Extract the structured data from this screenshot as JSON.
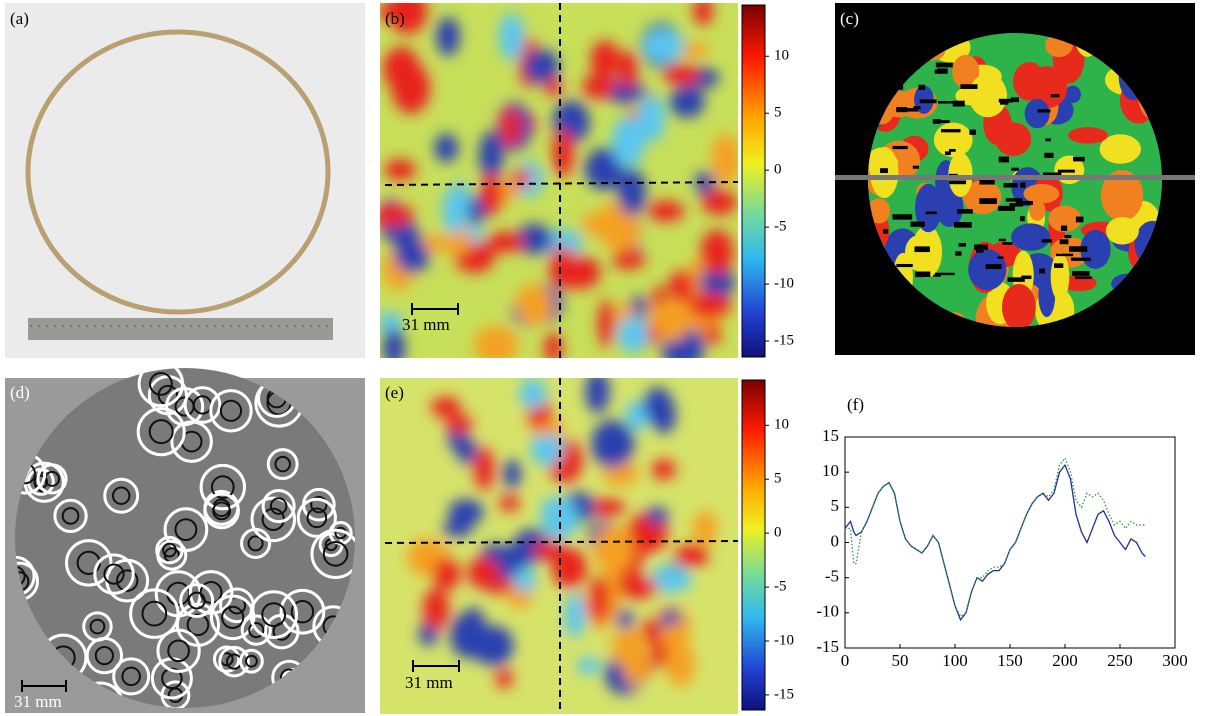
{
  "panels": {
    "a": {
      "label": "(a)"
    },
    "b": {
      "label": "(b)",
      "scale_bar": "31 mm",
      "colorbar": {
        "ylim": [
          -16.4,
          14.5
        ],
        "ticks": [
          10,
          5,
          0,
          -5,
          -10,
          -15
        ]
      }
    },
    "c": {
      "label": "(c)"
    },
    "d": {
      "label": "(d)",
      "scale_bar": "31 mm"
    },
    "e": {
      "label": "(e)",
      "scale_bar": "31 mm",
      "colorbar": {
        "ylim": [
          -16.4,
          14.2
        ],
        "ticks": [
          10,
          5,
          0,
          -5,
          -10,
          -15
        ]
      }
    },
    "f": {
      "label": "(f)"
    }
  },
  "chart_data": {
    "type": "line",
    "x": [
      0,
      5,
      8,
      10,
      15,
      20,
      25,
      30,
      35,
      40,
      45,
      50,
      55,
      60,
      65,
      70,
      75,
      80,
      85,
      90,
      95,
      100,
      105,
      110,
      115,
      120,
      125,
      130,
      135,
      140,
      145,
      150,
      155,
      160,
      165,
      170,
      175,
      180,
      185,
      190,
      195,
      200,
      205,
      210,
      215,
      220,
      225,
      230,
      235,
      240,
      245,
      250,
      255,
      260,
      265,
      270,
      273
    ],
    "series": [
      {
        "color": "#1f2fa0",
        "style": "solid",
        "values": [
          2,
          3,
          1.5,
          1,
          1.5,
          3,
          5,
          7,
          8,
          8.5,
          7,
          3,
          0.5,
          -0.5,
          -1,
          -1.5,
          -0.5,
          1,
          0,
          -3,
          -6,
          -9,
          -11,
          -10,
          -7,
          -5,
          -5.5,
          -4.5,
          -4,
          -4,
          -3,
          -1,
          0,
          2,
          4,
          5.5,
          6.5,
          7,
          6,
          7,
          10,
          11,
          9,
          4,
          1.5,
          0,
          2,
          4,
          4.5,
          3,
          1,
          0,
          -1,
          0.5,
          0,
          -1.5,
          -2
        ]
      },
      {
        "color": "#2a9a3a",
        "style": "dotted",
        "values": [
          2,
          2,
          -3,
          -3,
          1.5,
          3,
          5,
          7,
          8,
          8.5,
          7,
          3,
          0.5,
          -0.5,
          -1,
          -1.5,
          -0.5,
          1,
          0,
          -3,
          -6,
          -9,
          -10.5,
          -10,
          -7,
          -5,
          -5,
          -4,
          -3.5,
          -3.5,
          -3,
          -1,
          0,
          2,
          4,
          5.5,
          6.5,
          7,
          6.5,
          7.5,
          11,
          12,
          10,
          6,
          5,
          7,
          6.5,
          7,
          6,
          4,
          2.5,
          3,
          2,
          3,
          2.5,
          2.5,
          2.5
        ]
      }
    ],
    "xlim": [
      0,
      300
    ],
    "ylim": [
      -15,
      15
    ],
    "xticks": [
      0,
      50,
      100,
      150,
      200,
      250,
      300
    ],
    "yticks": [
      -15,
      -10,
      -5,
      0,
      5,
      10,
      15
    ]
  }
}
